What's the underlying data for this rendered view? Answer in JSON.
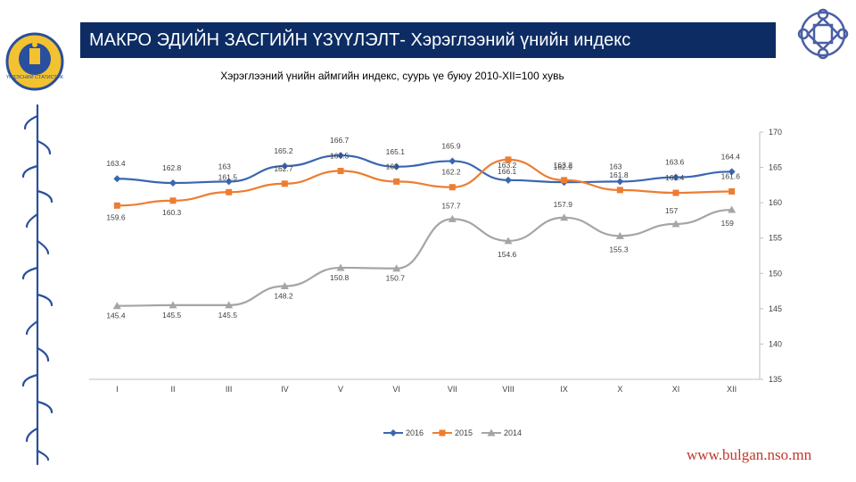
{
  "header": {
    "title": "МАКРО ЭДИЙН ЗАСГИЙН ҮЗҮҮЛЭЛТ- Хэрэглээний үнийн индекс",
    "emblem_text": "ҮНДЭСНИЙ СТАТИСТИК"
  },
  "footer": {
    "website": "www.bulgan.nso.mn"
  },
  "colors": {
    "title_bar": "#0c2c63",
    "s2016": "#3a66b0",
    "s2015": "#ed7d31",
    "s2014": "#a5a5a5",
    "website": "#c0392b"
  },
  "chart_data": {
    "type": "line",
    "title": "Хэрэглээний үнийн аймгийн индекс, суурь үе буюу 2010-XII=100 хувь",
    "categories": [
      "I",
      "II",
      "III",
      "IV",
      "V",
      "VI",
      "VII",
      "VIII",
      "IX",
      "X",
      "XI",
      "XII"
    ],
    "ylim": [
      135,
      170
    ],
    "yticks": [
      135,
      140,
      145,
      150,
      155,
      160,
      165,
      170
    ],
    "y_axis_side": "right",
    "legend_position": "bottom-center",
    "series": [
      {
        "name": "2016",
        "color": "#3a66b0",
        "marker": "diamond",
        "values": [
          163.4,
          162.8,
          163,
          165.2,
          166.7,
          165.1,
          165.9,
          163.2,
          162.9,
          163,
          163.6,
          164.4
        ],
        "labels": [
          "163.4",
          "162.8",
          "163",
          "165.2",
          "166.7",
          "165.1",
          "165.9",
          "163.2",
          "162.9",
          "163",
          "163.6",
          "164.4"
        ]
      },
      {
        "name": "2015",
        "color": "#ed7d31",
        "marker": "square",
        "values": [
          159.6,
          160.3,
          161.5,
          162.7,
          164.5,
          163,
          162.2,
          166.1,
          163.2,
          161.8,
          161.4,
          161.6
        ],
        "labels": [
          "159.6",
          "160.3",
          "161.5",
          "162.7",
          "164.5",
          "163",
          "162.2",
          "166.1",
          "163.2",
          "161.8",
          "161.4",
          "161.6"
        ]
      },
      {
        "name": "2014",
        "color": "#a5a5a5",
        "marker": "triangle",
        "values": [
          145.4,
          145.5,
          145.5,
          148.2,
          150.8,
          150.7,
          157.7,
          154.6,
          157.9,
          155.3,
          157,
          159
        ],
        "labels": [
          "145.4",
          "145.5",
          "145.5",
          "148.2",
          "150.8",
          "150.7",
          "157.7",
          "154.6",
          "157.9",
          "155.3",
          "157",
          "159"
        ]
      }
    ]
  }
}
